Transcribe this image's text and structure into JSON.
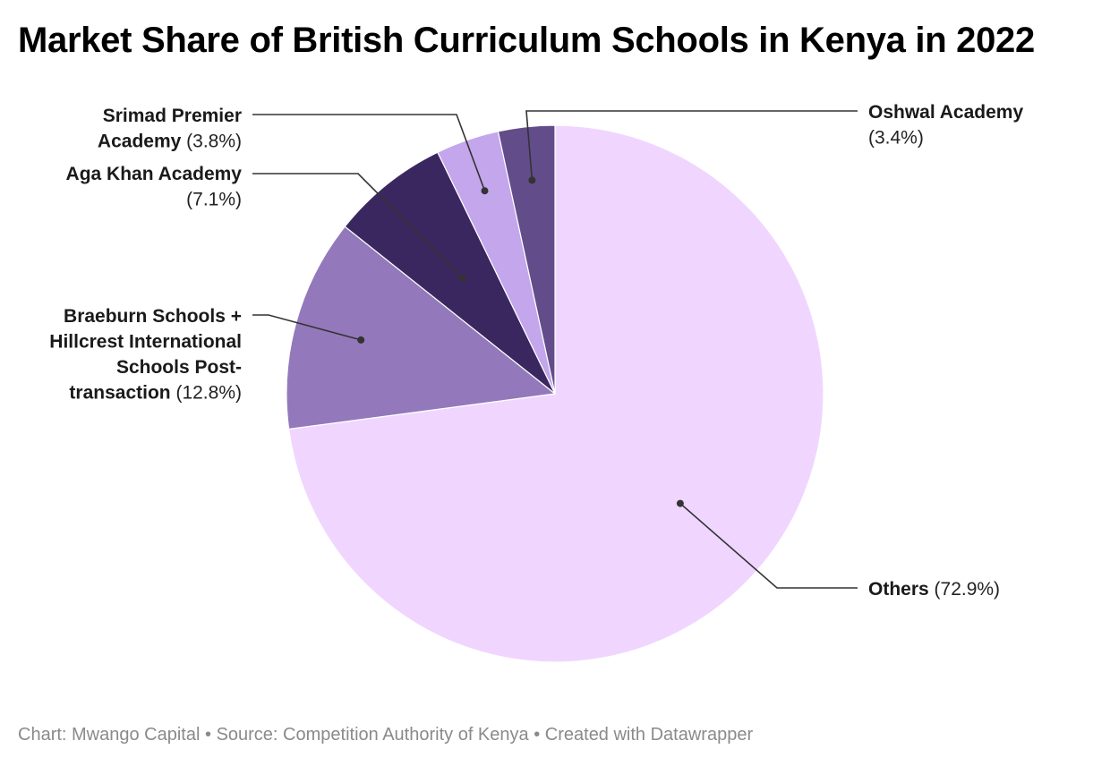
{
  "title": "Market Share of British Curriculum Schools in Kenya in 2022",
  "footer": {
    "credit": "Chart: Mwango Capital",
    "sep": " • ",
    "source": "Source: Competition Authority of Kenya",
    "created": "Created with Datawrapper"
  },
  "chart_data": {
    "type": "pie",
    "start": "12 o'clock",
    "direction": "clockwise",
    "slices": [
      {
        "label": "Others",
        "display": "(72.9%)",
        "value": 72.9,
        "color": "#f0d6fe"
      },
      {
        "label": "Braeburn Schools + Hillcrest International Schools Post-transaction",
        "display": "(12.8%)",
        "value": 12.8,
        "color": "#9379bb"
      },
      {
        "label": "Aga Khan Academy",
        "display": "(7.1%)",
        "value": 7.1,
        "color": "#3b2760"
      },
      {
        "label": "Srimad Premier Academy",
        "display": "(3.8%)",
        "value": 3.8,
        "color": "#c3a6ec"
      },
      {
        "label": "Oshwal Academy",
        "display": "(3.4%)",
        "value": 3.4,
        "color": "#634c8a"
      }
    ]
  }
}
